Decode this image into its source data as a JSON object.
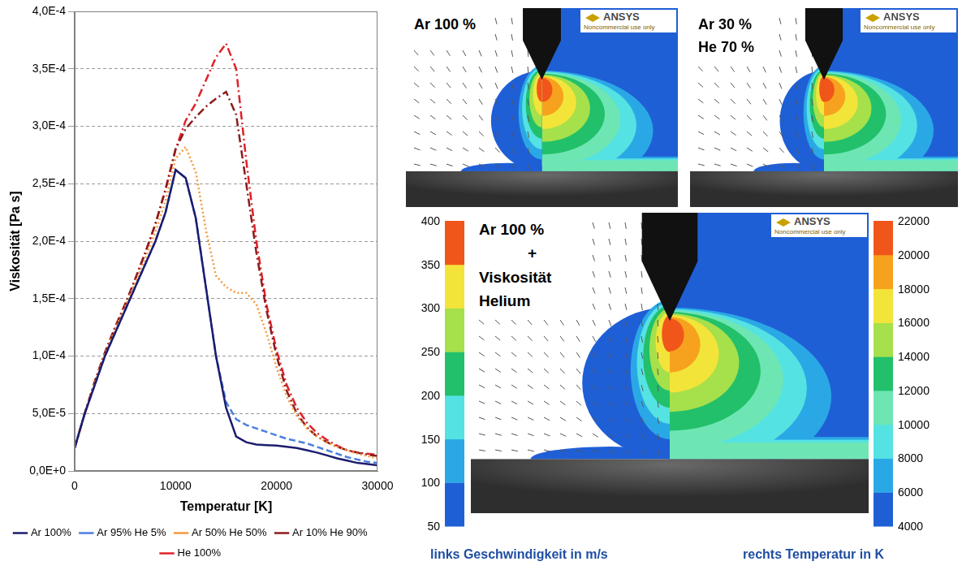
{
  "chart_data": {
    "type": "line",
    "x_label": "Temperatur [K]",
    "y_label": "Viskosität [Pa s]",
    "x": [
      0,
      1000,
      2000,
      3000,
      4000,
      5000,
      6000,
      7000,
      8000,
      9000,
      10000,
      11000,
      12000,
      13000,
      14000,
      15000,
      16000,
      17000,
      18000,
      19000,
      20000,
      21000,
      22000,
      23000,
      24000,
      25000,
      26000,
      27000,
      28000,
      29000,
      30000
    ],
    "series": [
      {
        "name": "Ar 100%",
        "color": "#1c1c6e",
        "line_style": "solid",
        "values": [
          2e-05,
          5e-05,
          7.5e-05,
          0.0001,
          0.00012,
          0.00014,
          0.00016,
          0.00018,
          0.0002,
          0.000225,
          0.000262,
          0.000255,
          0.00022,
          0.00016,
          0.0001,
          5.5e-05,
          3e-05,
          2.5e-05,
          2.3e-05,
          2.25e-05,
          2.2e-05,
          2.1e-05,
          2e-05,
          1.8e-05,
          1.6e-05,
          1.35e-05,
          1.1e-05,
          9e-06,
          7e-06,
          6e-06,
          5e-06
        ]
      },
      {
        "name": "Ar 95% He 5%",
        "color": "#4a7fe0",
        "line_style": "dashed",
        "values": [
          2e-05,
          5e-05,
          7.5e-05,
          0.0001,
          0.00012,
          0.00014,
          0.00016,
          0.00018,
          0.0002,
          0.000225,
          0.000262,
          0.000255,
          0.00022,
          0.00016,
          0.0001,
          6e-05,
          4.5e-05,
          4e-05,
          3.7e-05,
          3.4e-05,
          3.1e-05,
          2.8e-05,
          2.6e-05,
          2.4e-05,
          2.1e-05,
          1.8e-05,
          1.5e-05,
          1.2e-05,
          1e-05,
          8e-06,
          7e-06
        ]
      },
      {
        "name": "Ar 50% He 50%",
        "color": "#f39a3c",
        "line_style": "dotted",
        "values": [
          2e-05,
          5e-05,
          7.7e-05,
          0.000102,
          0.000123,
          0.000143,
          0.000164,
          0.000185,
          0.000208,
          0.000235,
          0.000272,
          0.000282,
          0.00026,
          0.00021,
          0.00017,
          0.00016,
          0.000155,
          0.000155,
          0.000145,
          0.00012,
          9e-05,
          6.5e-05,
          4.8e-05,
          3.7e-05,
          3e-05,
          2.5e-05,
          2.1e-05,
          1.8e-05,
          1.5e-05,
          1.3e-05,
          1.1e-05
        ]
      },
      {
        "name": "Ar 10% He 90%",
        "color": "#8b1c1c",
        "line_style": "dashdot",
        "values": [
          2e-05,
          5e-05,
          7.8e-05,
          0.000103,
          0.000125,
          0.000145,
          0.000167,
          0.00019,
          0.000215,
          0.000245,
          0.00028,
          0.000298,
          0.000308,
          0.000317,
          0.000324,
          0.00033,
          0.00031,
          0.00025,
          0.00019,
          0.00014,
          0.0001,
          7e-05,
          5e-05,
          3.8e-05,
          3e-05,
          2.5e-05,
          2.1e-05,
          1.8e-05,
          1.6e-05,
          1.4e-05,
          1.3e-05
        ]
      },
      {
        "name": "He 100%",
        "color": "#e0202a",
        "line_style": "dashdot",
        "values": [
          2e-05,
          5e-05,
          7.8e-05,
          0.000103,
          0.000125,
          0.000145,
          0.000167,
          0.00019,
          0.000215,
          0.000245,
          0.00028,
          0.000305,
          0.00032,
          0.00034,
          0.00036,
          0.000372,
          0.00035,
          0.00027,
          0.0002,
          0.000145,
          0.000105,
          7.5e-05,
          5.5e-05,
          4.2e-05,
          3.3e-05,
          2.7e-05,
          2.2e-05,
          1.8e-05,
          1.6e-05,
          1.5e-05,
          1.4e-05
        ]
      }
    ],
    "xlim": [
      0,
      30000
    ],
    "xticks": [
      0,
      10000,
      20000,
      30000
    ],
    "ylim": [
      0,
      0.0004
    ],
    "yticks": [
      {
        "value": 0,
        "label": "0,0E+0"
      },
      {
        "value": 5e-05,
        "label": "5,0E-5"
      },
      {
        "value": 0.0001,
        "label": "1,0E-4"
      },
      {
        "value": 0.00015,
        "label": "1,5E-4"
      },
      {
        "value": 0.0002,
        "label": "2,0E-4"
      },
      {
        "value": 0.00025,
        "label": "2,5E-4"
      },
      {
        "value": 0.0003,
        "label": "3,0E-4"
      },
      {
        "value": 0.00035,
        "label": "3,5E-4"
      },
      {
        "value": 0.0004,
        "label": "4,0E-4"
      }
    ],
    "grid": "y",
    "legend": "bottom"
  },
  "panels": [
    {
      "labels": [
        "Ar 100 %"
      ]
    },
    {
      "labels": [
        "Ar 30 %",
        "He 70 %"
      ]
    },
    {
      "labels": [
        "Ar 100 %",
        "+",
        "Viskosität Helium"
      ]
    }
  ],
  "logo": {
    "text": "ANSYS",
    "note": "Noncommercial use only"
  },
  "colorbars": {
    "velocity": {
      "ticks": [
        50,
        100,
        150,
        200,
        250,
        300,
        350,
        400
      ],
      "colors": [
        "#1f5fd6",
        "#2aa8e6",
        "#55e2e2",
        "#22c06a",
        "#a6e04a",
        "#f3e43a",
        "#f0561a"
      ],
      "caption": "links Geschwindigkeit in m/s"
    },
    "temperature": {
      "ticks": [
        4000,
        6000,
        8000,
        10000,
        12000,
        14000,
        16000,
        18000,
        20000,
        22000
      ],
      "colors": [
        "#1f5fd6",
        "#2aa8e6",
        "#55e2e2",
        "#6ee6b4",
        "#22c06a",
        "#a6e04a",
        "#f3e43a",
        "#f7a21e",
        "#f0561a"
      ],
      "caption": "rechts Temperatur in K"
    }
  }
}
